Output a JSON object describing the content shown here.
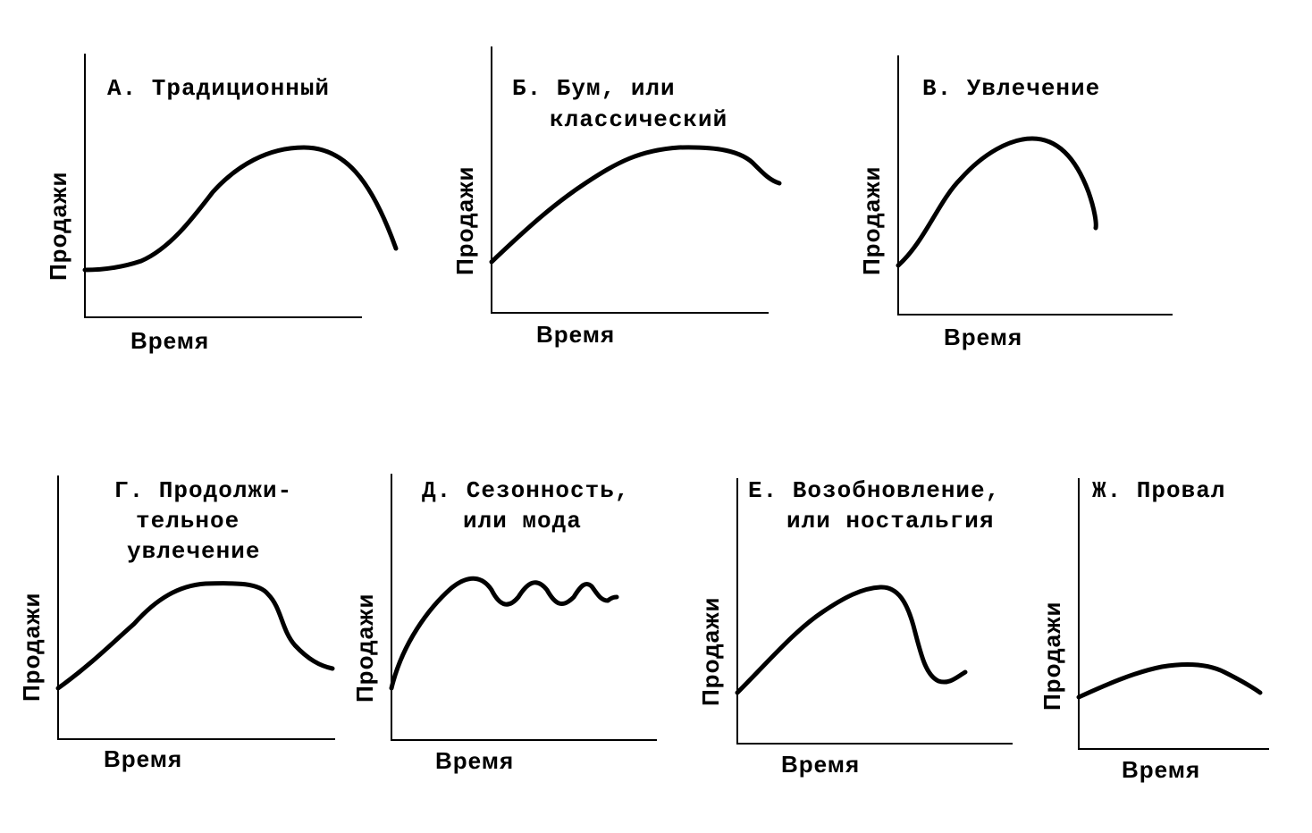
{
  "common": {
    "y_axis_label": "Продажи",
    "x_axis_label": "Время"
  },
  "panels": [
    {
      "id": "a",
      "title_lines": [
        "А. Традиционный"
      ]
    },
    {
      "id": "b",
      "title_lines": [
        "Б. Бум, или",
        "классический"
      ]
    },
    {
      "id": "v",
      "title_lines": [
        "В. Увлечение"
      ]
    },
    {
      "id": "g",
      "title_lines": [
        "Г. Продолжи-",
        "тельное",
        "увлечение"
      ]
    },
    {
      "id": "d",
      "title_lines": [
        "Д. Сезонность,",
        "или мода"
      ]
    },
    {
      "id": "e",
      "title_lines": [
        "Е. Возобновление,",
        "или ностальгия"
      ]
    },
    {
      "id": "zh",
      "title_lines": [
        "Ж. Провал"
      ]
    }
  ]
}
